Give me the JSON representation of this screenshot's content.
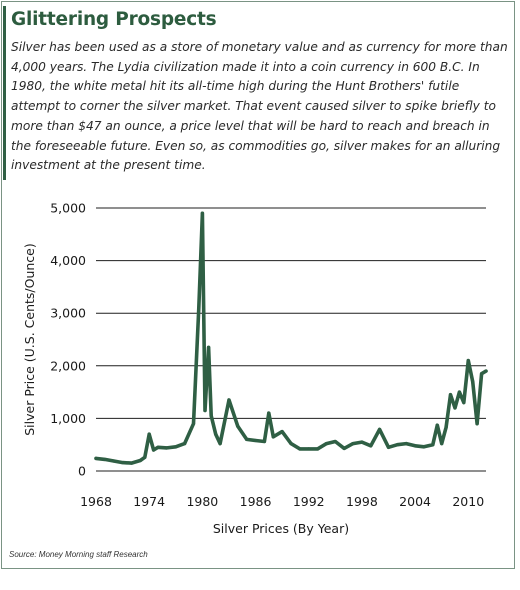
{
  "header": {
    "title": "Glittering Prospects",
    "description": "Silver has been used as a store of monetary value and as currency for more than 4,000 years. The Lydia civilization made it into a coin currency in 600 B.C. In 1980, the white metal hit its all-time high during the Hunt Brothers' futile attempt to corner the silver market. That event caused silver to spike briefly to more than $47 an ounce, a price level that will be hard to reach and breach in the foreseeable future. Even so, as commodities go, silver makes for an alluring investment at the present time."
  },
  "source": "Source: Money Morning staff Research",
  "colors": {
    "accent": "#2d5c3f",
    "line": "#2f5f44",
    "grid": "#1f1f1f",
    "frame": "#7a9384"
  },
  "chart_data": {
    "type": "line",
    "title": "",
    "xlabel": "Silver Prices (By Year)",
    "ylabel": "Silver Price (U.S. Cents/Ounce)",
    "xlim": [
      1968,
      2012
    ],
    "ylim": [
      0,
      5000
    ],
    "x_ticks": [
      1968,
      1974,
      1980,
      1986,
      1992,
      1998,
      2004,
      2010
    ],
    "y_ticks": [
      0,
      1000,
      2000,
      3000,
      4000,
      5000
    ],
    "x_tick_labels": [
      "1968",
      "1974",
      "1980",
      "1986",
      "1992",
      "1998",
      "2004",
      "2010"
    ],
    "y_tick_labels": [
      "0",
      "1,000",
      "2,000",
      "3,000",
      "4,000",
      "5,000"
    ],
    "grid": true,
    "series": [
      {
        "x": [
          1968,
          1969,
          1970,
          1971,
          1972,
          1973,
          1973.5,
          1974,
          1974.5,
          1975,
          1976,
          1977,
          1978,
          1979,
          1979.6,
          1980,
          1980.3,
          1980.7,
          1981,
          1981.5,
          1982,
          1983,
          1984,
          1985,
          1986,
          1987,
          1987.5,
          1988,
          1989,
          1990,
          1991,
          1992,
          1993,
          1994,
          1995,
          1996,
          1997,
          1998,
          1999,
          2000,
          2001,
          2002,
          2003,
          2004,
          2005,
          2006,
          2006.5,
          2007,
          2007.5,
          2008,
          2008.5,
          2009,
          2009.5,
          2010,
          2010.5,
          2011,
          2011.5,
          2012
        ],
        "y": [
          240,
          220,
          190,
          160,
          150,
          200,
          260,
          700,
          400,
          450,
          440,
          460,
          520,
          900,
          3100,
          4900,
          1150,
          2350,
          1050,
          700,
          520,
          1350,
          850,
          600,
          580,
          560,
          1100,
          650,
          750,
          520,
          420,
          420,
          420,
          520,
          560,
          430,
          520,
          550,
          480,
          790,
          450,
          500,
          520,
          480,
          460,
          500,
          870,
          520,
          830,
          1450,
          1200,
          1500,
          1300,
          2100,
          1700,
          900,
          1850,
          1900
        ]
      }
    ]
  }
}
